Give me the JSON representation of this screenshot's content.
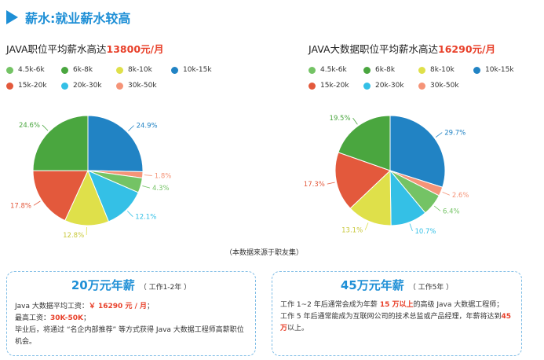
{
  "header": {
    "title": "薪水:就业薪水较高"
  },
  "left": {
    "subtitle_prefix": "JAVA职位平均薪水高达",
    "subtitle_highlight": "13800元/月",
    "pie_labels": [
      "24.9%",
      "1.8%",
      "4.3%",
      "12.1%",
      "12.8%",
      "17.8%",
      "24.6%"
    ]
  },
  "right": {
    "subtitle_prefix": "JAVA大数据职位平均薪水高达",
    "subtitle_highlight": "16290元/月",
    "pie_labels": [
      "29.7%",
      "2.6%",
      "6.4%",
      "10.7%",
      "13.1%",
      "17.3%",
      "19.5%"
    ]
  },
  "legend": [
    {
      "label": "4.5k-6k",
      "color": "#74c365"
    },
    {
      "label": "6k-8k",
      "color": "#4aa63f"
    },
    {
      "label": "8k-10k",
      "color": "#dfe04a"
    },
    {
      "label": "10k-15k",
      "color": "#2183c4"
    },
    {
      "label": "15k-20k",
      "color": "#e3593c"
    },
    {
      "label": "20k-30k",
      "color": "#34c0e6"
    },
    {
      "label": "30k-50k",
      "color": "#f59478"
    }
  ],
  "chart_data": [
    {
      "type": "pie",
      "title": "JAVA职位平均薪水高达13800元/月",
      "categories": [
        "10k-15k",
        "30k-50k",
        "4.5k-6k",
        "20k-30k",
        "8k-10k",
        "15k-20k",
        "6k-8k"
      ],
      "values": [
        24.9,
        1.8,
        4.3,
        12.1,
        12.8,
        17.8,
        24.6
      ],
      "colors": [
        "#2183c4",
        "#f59478",
        "#74c365",
        "#34c0e6",
        "#dfe04a",
        "#e3593c",
        "#4aa63f"
      ]
    },
    {
      "type": "pie",
      "title": "JAVA大数据职位平均薪水高达16290元/月",
      "categories": [
        "10k-15k",
        "30k-50k",
        "4.5k-6k",
        "20k-30k",
        "8k-10k",
        "15k-20k",
        "6k-8k"
      ],
      "values": [
        29.7,
        2.6,
        6.4,
        10.7,
        13.1,
        17.3,
        19.5
      ],
      "colors": [
        "#2183c4",
        "#f59478",
        "#74c365",
        "#34c0e6",
        "#dfe04a",
        "#e3593c",
        "#4aa63f"
      ]
    }
  ],
  "source_note": "（本数据来源于职友集）",
  "box_left": {
    "title": "20万元年薪",
    "subtitle": "（ 工作1-2年 ）",
    "line1_prefix": "Java 大数据平均工资：",
    "line1_value": "￥ 16290 元 / 月",
    "line1_suffix": "；",
    "line2_prefix": "最高工资：",
    "line2_value": "30K-50K",
    "line2_suffix": "；",
    "line3": "毕业后，将通过 “名企内部推荐” 等方式获得 Java 大数据工程师高薪职位机会。"
  },
  "box_right": {
    "title": "45万元年薪",
    "subtitle": "（ 工作5年 ）",
    "p1_prefix": "工作 1~2 年后通常会成为年薪",
    "p1_value": " 15 万以上",
    "p1_suffix": "的高级 Java 大数据工程师；",
    "p2": "工作 5 年后通常能成为互联网公司的技术总监或产品经理，年薪将达到",
    "p2_value": "45万",
    "p2_suffix": "以上。"
  }
}
